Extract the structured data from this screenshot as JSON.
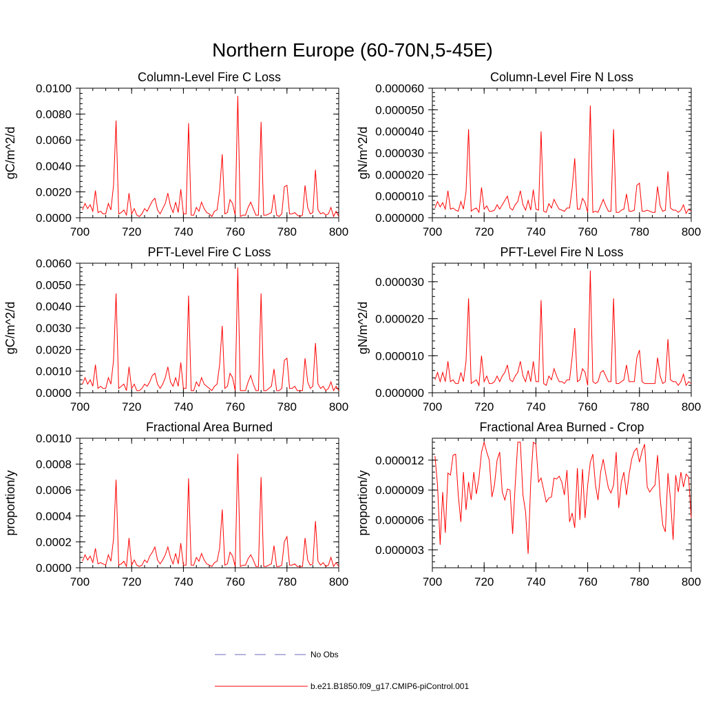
{
  "figure_title": "Northern Europe (60-70N,5-45E)",
  "legend": {
    "entries": [
      {
        "label": "No Obs",
        "style": "dashed",
        "color": "#6a6ab8"
      },
      {
        "label": "b.e21.B1850.f09_g17.CMIP6-piControl.001",
        "style": "solid",
        "color": "#ff0000"
      }
    ]
  },
  "chart_data": [
    {
      "type": "line",
      "title": "Column-Level Fire C Loss",
      "xlabel": "",
      "ylabel": "gC/m^2/d",
      "xlim": [
        700,
        800
      ],
      "ylim": [
        0,
        0.01
      ],
      "xticks": [
        700,
        720,
        740,
        760,
        780,
        800
      ],
      "xtick_labels": [
        "700",
        "720",
        "740",
        "760",
        "780",
        "800"
      ],
      "yticks": [
        0,
        0.002,
        0.004,
        0.006,
        0.008,
        0.01
      ],
      "ytick_labels": [
        "0.0000",
        "0.0020",
        "0.0040",
        "0.0060",
        "0.0080",
        "0.0100"
      ],
      "x_start": 701,
      "series": [
        {
          "name": "b.e21.B1850.f09_g17.CMIP6-piControl.001",
          "color": "#ff0000",
          "values": [
            0.0006,
            0.0011,
            0.0007,
            0.001,
            0.0005,
            0.0021,
            0.0004,
            0.0005,
            0.0003,
            0.0003,
            0.0011,
            0.0006,
            0.0025,
            0.0075,
            0.0003,
            0.0004,
            0.0006,
            0.0002,
            0.0019,
            0.0003,
            0.0007,
            0.0002,
            0.0001,
            0.0003,
            0.0007,
            0.0005,
            0.0009,
            0.0013,
            0.0015,
            0.0006,
            0.0003,
            0.0007,
            0.0011,
            0.0019,
            0.0009,
            0.0004,
            0.0012,
            0.0004,
            0.0022,
            0.0003,
            0.0003,
            0.0073,
            0.0002,
            0.0002,
            0.0008,
            0.0005,
            0.0012,
            0.0007,
            0.0004,
            0.0003,
            0.0001,
            0.0005,
            0.0006,
            0.0021,
            0.0049,
            0.0003,
            0.0004,
            0.0014,
            0.0011,
            0.0002,
            0.0094,
            0.0001,
            0.0002,
            0.0002,
            0.0008,
            0.0012,
            0.0007,
            0.0002,
            0.0002,
            0.0074,
            0.0002,
            0.0002,
            0.0003,
            0.0004,
            0.0018,
            0.0002,
            0.0001,
            0.0003,
            0.0024,
            0.0025,
            0.0003,
            0.0003,
            0.0004,
            0.0002,
            0.0001,
            0.0002,
            0.0025,
            0.0008,
            0.0003,
            0.0004,
            0.0037,
            0.0006,
            0.0003,
            0.0004,
            0.0002,
            0.0003,
            0.0008,
            0.0001,
            0.0005,
            0.0001
          ]
        }
      ]
    },
    {
      "type": "line",
      "title": "Column-Level Fire N Loss",
      "xlabel": "",
      "ylabel": "gN/m^2/d",
      "xlim": [
        700,
        800
      ],
      "ylim": [
        0,
        6e-05
      ],
      "xticks": [
        700,
        720,
        740,
        760,
        780,
        800
      ],
      "xtick_labels": [
        "700",
        "720",
        "740",
        "760",
        "780",
        "800"
      ],
      "yticks": [
        0,
        1e-05,
        2e-05,
        3e-05,
        4e-05,
        5e-05,
        6e-05
      ],
      "ytick_labels": [
        "0.000000",
        "0.000010",
        "0.000020",
        "0.000030",
        "0.000040",
        "0.000050",
        "0.000060"
      ],
      "x_start": 701,
      "series": [
        {
          "name": "b.e21.B1850.f09_g17.CMIP6-piControl.001",
          "color": "#ff0000",
          "values": [
            4.5e-06,
            7.5e-06,
            5e-06,
            7e-06,
            4e-06,
            1.25e-05,
            4e-06,
            4.5e-06,
            3.5e-06,
            3e-06,
            7.5e-06,
            4e-06,
            1.2e-05,
            4.1e-05,
            3e-06,
            4e-06,
            4.5e-06,
            2.5e-06,
            1.4e-05,
            4e-06,
            5.5e-06,
            3e-06,
            3e-06,
            3.5e-06,
            6e-06,
            4e-06,
            6e-06,
            8e-06,
            1e-05,
            4.5e-06,
            3.5e-06,
            6e-06,
            7.5e-06,
            1.25e-05,
            6e-06,
            3.5e-06,
            8e-06,
            3.5e-06,
            1.3e-05,
            4e-06,
            3.5e-06,
            4e-05,
            3e-06,
            2.5e-06,
            6.5e-06,
            4.5e-06,
            8.5e-06,
            6e-06,
            4e-06,
            3.5e-06,
            3e-06,
            4.5e-06,
            4.5e-06,
            1.35e-05,
            2.75e-05,
            4e-06,
            4e-06,
            9e-06,
            7e-06,
            2.5e-06,
            5.2e-05,
            2.5e-06,
            3e-06,
            2.5e-06,
            5.5e-06,
            8.5e-06,
            5.5e-06,
            3e-06,
            3e-06,
            4.1e-05,
            2.5e-06,
            2.5e-06,
            3.5e-06,
            4e-06,
            1.1e-05,
            3e-06,
            3e-06,
            3.5e-06,
            1.5e-05,
            1.6e-05,
            3e-06,
            3e-06,
            3.5e-06,
            3e-06,
            2.5e-06,
            2.5e-06,
            1.45e-05,
            5.5e-06,
            3e-06,
            3.5e-06,
            2.15e-05,
            4.5e-06,
            3.5e-06,
            3.5e-06,
            2.5e-06,
            3.5e-06,
            6e-06,
            2e-06,
            4e-06,
            3e-06
          ]
        }
      ]
    },
    {
      "type": "line",
      "title": "PFT-Level Fire C Loss",
      "xlabel": "",
      "ylabel": "gC/m^2/d",
      "xlim": [
        700,
        800
      ],
      "ylim": [
        0,
        0.006
      ],
      "xticks": [
        700,
        720,
        740,
        760,
        780,
        800
      ],
      "xtick_labels": [
        "700",
        "720",
        "740",
        "760",
        "780",
        "800"
      ],
      "yticks": [
        0,
        0.001,
        0.002,
        0.003,
        0.004,
        0.005,
        0.006
      ],
      "ytick_labels": [
        "0.0000",
        "0.0010",
        "0.0020",
        "0.0030",
        "0.0040",
        "0.0050",
        "0.0060"
      ],
      "x_start": 701,
      "series": [
        {
          "name": "b.e21.B1850.f09_g17.CMIP6-piControl.001",
          "color": "#ff0000",
          "values": [
            0.0004,
            0.0007,
            0.0004,
            0.0006,
            0.0003,
            0.0013,
            0.0002,
            0.0003,
            0.0002,
            0.0002,
            0.0007,
            0.0004,
            0.0015,
            0.0046,
            0.0002,
            0.0003,
            0.0004,
            0.0001,
            0.0012,
            0.0002,
            0.0004,
            0.0001,
            0.0001,
            0.0002,
            0.0004,
            0.0003,
            0.0005,
            0.0008,
            0.0009,
            0.0004,
            0.0002,
            0.0004,
            0.0007,
            0.0012,
            0.0005,
            0.0003,
            0.0007,
            0.0003,
            0.0014,
            0.0002,
            0.0002,
            0.0045,
            0.0001,
            0.0001,
            0.0005,
            0.0003,
            0.0007,
            0.0004,
            0.0003,
            0.0002,
            0.0001,
            0.0003,
            0.0004,
            0.0013,
            0.0031,
            0.0002,
            0.0003,
            0.0009,
            0.0007,
            0.0001,
            0.0058,
            0.0001,
            0.0001,
            0.0001,
            0.0005,
            0.0008,
            0.0004,
            0.0001,
            0.0001,
            0.0046,
            0.0001,
            0.0001,
            0.0002,
            0.0003,
            0.0011,
            0.0001,
            0.0001,
            0.0002,
            0.0015,
            0.0016,
            0.0002,
            0.0002,
            0.0003,
            0.0001,
            0.0001,
            0.0001,
            0.0016,
            0.0005,
            0.0002,
            0.0003,
            0.0023,
            0.0004,
            0.0002,
            0.0003,
            0.0001,
            0.0002,
            0.0005,
            0.0001,
            0.0003,
            0.0001
          ]
        }
      ]
    },
    {
      "type": "line",
      "title": "PFT-Level Fire N Loss",
      "xlabel": "",
      "ylabel": "gN/m^2/d",
      "xlim": [
        700,
        800
      ],
      "ylim": [
        0,
        3.5e-05
      ],
      "xticks": [
        700,
        720,
        740,
        760,
        780,
        800
      ],
      "xtick_labels": [
        "700",
        "720",
        "740",
        "760",
        "780",
        "800"
      ],
      "yticks": [
        0,
        1e-05,
        2e-05,
        3e-05
      ],
      "ytick_labels": [
        "0.000000",
        "0.000010",
        "0.000020",
        "0.000030"
      ],
      "x_start": 701,
      "series": [
        {
          "name": "b.e21.B1850.f09_g17.CMIP6-piControl.001",
          "color": "#ff0000",
          "values": [
            3.5e-06,
            5.5e-06,
            3e-06,
            5.5e-06,
            3e-06,
            8.5e-06,
            3e-06,
            3.5e-06,
            2.5e-06,
            2.5e-06,
            5.5e-06,
            3e-06,
            8.5e-06,
            2.55e-05,
            2.5e-06,
            3e-06,
            3.5e-06,
            2e-06,
            1e-05,
            3e-06,
            4.5e-06,
            2.5e-06,
            2.5e-06,
            3e-06,
            4.5e-06,
            3e-06,
            4.5e-06,
            5.5e-06,
            7.5e-06,
            3.5e-06,
            3e-06,
            4.5e-06,
            5.5e-06,
            8.5e-06,
            4.5e-06,
            3e-06,
            6e-06,
            3e-06,
            8.5e-06,
            3e-06,
            3e-06,
            2.5e-05,
            2.5e-06,
            2e-06,
            4.5e-06,
            3.5e-06,
            6.5e-06,
            4.5e-06,
            3e-06,
            3e-06,
            2.5e-06,
            3.5e-06,
            3.5e-06,
            9.5e-06,
            1.75e-05,
            3e-06,
            3.5e-06,
            6.5e-06,
            5.5e-06,
            2e-06,
            3.3e-05,
            3e-06,
            2.5e-06,
            3e-06,
            5.5e-06,
            6e-06,
            4.5e-06,
            3e-06,
            3e-06,
            2.55e-05,
            2.5e-06,
            2.5e-06,
            3e-06,
            3.5e-06,
            7.5e-06,
            3e-06,
            3e-06,
            3e-06,
            9.5e-06,
            1.15e-05,
            3e-06,
            2.5e-06,
            2.5e-06,
            2.5e-06,
            2.5e-06,
            2.5e-06,
            9.5e-06,
            4.5e-06,
            2.5e-06,
            3e-06,
            1.45e-05,
            3.5e-06,
            3e-06,
            3e-06,
            2e-06,
            3e-06,
            5e-06,
            2e-06,
            3e-06,
            2.5e-06
          ]
        }
      ]
    },
    {
      "type": "line",
      "title": "Fractional Area Burned",
      "xlabel": "",
      "ylabel": "proportion/y",
      "xlim": [
        700,
        800
      ],
      "ylim": [
        0,
        0.001
      ],
      "xticks": [
        700,
        720,
        740,
        760,
        780,
        800
      ],
      "xtick_labels": [
        "700",
        "720",
        "740",
        "760",
        "780",
        "800"
      ],
      "yticks": [
        0,
        0.0002,
        0.0004,
        0.0006,
        0.0008,
        0.001
      ],
      "ytick_labels": [
        "0.0000",
        "0.0002",
        "0.0004",
        "0.0006",
        "0.0008",
        "0.0010"
      ],
      "x_start": 701,
      "series": [
        {
          "name": "b.e21.B1850.f09_g17.CMIP6-piControl.001",
          "color": "#ff0000",
          "values": [
            5e-05,
            0.0001,
            6e-05,
            9e-05,
            4e-05,
            0.00015,
            3e-05,
            4e-05,
            3e-05,
            2e-05,
            0.0001,
            5e-05,
            0.00022,
            0.00068,
            2e-05,
            3e-05,
            5e-05,
            1e-05,
            0.00023,
            2e-05,
            6e-05,
            2e-05,
            1e-05,
            2e-05,
            6e-05,
            4e-05,
            9e-05,
            0.00012,
            0.00016,
            6e-05,
            3e-05,
            6e-05,
            0.0001,
            0.00016,
            8e-05,
            3e-05,
            0.00011,
            3e-05,
            0.00019,
            2e-05,
            2e-05,
            0.00069,
            2e-05,
            2e-05,
            8e-05,
            5e-05,
            0.00011,
            6e-05,
            3e-05,
            2e-05,
            1e-05,
            4e-05,
            5e-05,
            0.00015,
            0.00045,
            2e-05,
            3e-05,
            0.00012,
            9e-05,
            1e-05,
            0.00088,
            1e-05,
            2e-05,
            2e-05,
            7e-05,
            0.0001,
            6e-05,
            1e-05,
            1e-05,
            0.0007,
            1e-05,
            1e-05,
            2e-05,
            3e-05,
            0.00017,
            1e-05,
            1e-05,
            2e-05,
            0.0002,
            0.00024,
            2e-05,
            2e-05,
            3e-05,
            1e-05,
            1e-05,
            1e-05,
            0.00023,
            6e-05,
            2e-05,
            3e-05,
            0.00036,
            5e-05,
            2e-05,
            4e-05,
            1e-05,
            2e-05,
            8e-05,
            1e-05,
            4e-05,
            1e-05
          ]
        }
      ]
    },
    {
      "type": "line",
      "title": "Fractional Area Burned - Crop",
      "xlabel": "",
      "ylabel": "proportion/y",
      "xlim": [
        700,
        800
      ],
      "ylim": [
        1.2e-06,
        1.42e-05
      ],
      "xticks": [
        700,
        720,
        740,
        760,
        780,
        800
      ],
      "xtick_labels": [
        "700",
        "720",
        "740",
        "760",
        "780",
        "800"
      ],
      "yticks": [
        3e-06,
        6e-06,
        9e-06,
        1.2e-05
      ],
      "ytick_labels": [
        "0.000003",
        "0.000006",
        "0.000009",
        "0.000012"
      ],
      "x_start": 701,
      "series": [
        {
          "name": "b.e21.B1850.f09_g17.CMIP6-piControl.001",
          "color": "#ff0000",
          "values": [
            1.24e-05,
            9.5e-06,
            3.5e-06,
            8.8e-06,
            4.7e-06,
            1.07e-05,
            1.05e-05,
            1.25e-05,
            1.26e-05,
            8.5e-06,
            5.8e-06,
            1.08e-05,
            7e-06,
            9.8e-06,
            8e-06,
            1.08e-05,
            8.6e-06,
            1.02e-05,
            1.28e-05,
            1.38e-05,
            1.28e-05,
            1.2e-05,
            8.3e-06,
            9.5e-06,
            1.2e-05,
            1.28e-05,
            8.8e-06,
            8e-06,
            9.1e-06,
            9e-06,
            4.6e-06,
            9.5e-06,
            1.38e-05,
            1.38e-05,
            8.5e-06,
            6.8e-06,
            2.6e-06,
            9.8e-06,
            1.38e-05,
            1.36e-05,
            9.8e-06,
            1.02e-05,
            9e-06,
            7.8e-06,
            8.2e-06,
            8.3e-06,
            1.02e-05,
            1.01e-05,
            1.04e-05,
            9.8e-06,
            8.5e-06,
            1.1e-05,
            5.8e-06,
            6.7e-06,
            5.2e-06,
            1.12e-05,
            6e-06,
            1.11e-05,
            6.2e-06,
            9.5e-06,
            1.18e-05,
            1.26e-05,
            9.5e-06,
            8e-06,
            1.08e-05,
            1.21e-05,
            1.06e-05,
            9.2e-06,
            8.7e-06,
            9.5e-06,
            1.28e-05,
            7.2e-06,
            9.8e-06,
            1.08e-05,
            8.5e-06,
            1.06e-05,
            1.21e-05,
            1.29e-05,
            1.32e-05,
            1.18e-05,
            1.29e-05,
            1.36e-05,
            9.3e-06,
            8.8e-06,
            9.2e-06,
            9.5e-06,
            1.25e-05,
            8.2e-06,
            5.5e-06,
            4.8e-06,
            1.07e-05,
            8e-06,
            4e-06,
            1.05e-05,
            8.8e-06,
            1.08e-05,
            9.3e-06,
            1.06e-05,
            1.03e-05,
            6.2e-06
          ]
        }
      ]
    }
  ]
}
